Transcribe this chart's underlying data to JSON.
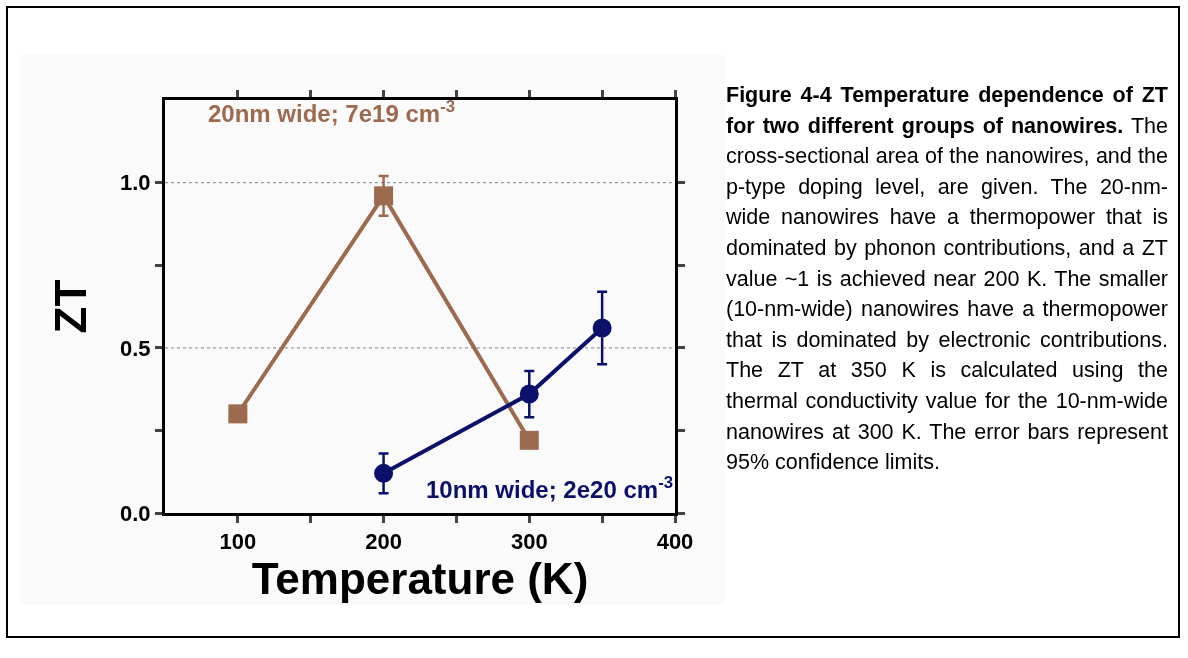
{
  "chart_data": {
    "type": "line",
    "xlabel": "Temperature (K)",
    "ylabel": "ZT",
    "title": "Figure 4-4 Temperature dependence of ZT for two different groups of nanowires.",
    "annotations": [
      "The cross-sectional area of the nanowires, and the p-type doping level, are given. The 20-nm-wide nanowires have a thermopower that is dominated by phonon contributions, and a ZT value ~1 is achieved near 200 K. The smaller (10-nm-wide) nanowires have a thermopower that is dominated by electronic contributions. The ZT at 350 K is calculated using the thermal conductivity value for the 10-nm-wide nanowires at 300 K. The error bars represent 95% confidence limits."
    ],
    "series": [
      {
        "name": "20nm wide; 7e19 cm$^{-3}$",
        "color": "#9c6a4f",
        "marker": "square",
        "x": [
          100,
          200,
          300
        ],
        "values": [
          0.3,
          0.96,
          0.22
        ],
        "errors": [
          null,
          0.06,
          null
        ]
      },
      {
        "name": "10nm wide; 2e20 cm$^{-3}$",
        "color": "#0b116b",
        "marker": "circle",
        "x": [
          200,
          300,
          350
        ],
        "values": [
          0.12,
          0.36,
          0.56
        ],
        "errors": [
          0.06,
          0.07,
          0.11
        ]
      }
    ],
    "xlim": [
      50,
      400
    ],
    "xticks": [
      100,
      {
        "value": 150,
        "label": null
      },
      200,
      {
        "value": 250,
        "label": null
      },
      300,
      {
        "value": 350,
        "label": null
      },
      400
    ],
    "ylim": [
      0,
      1.25
    ],
    "yticks": [
      {
        "value": 0,
        "label": "0.0"
      },
      {
        "value": 0.25,
        "label": null
      },
      0.5,
      {
        "value": 0.75,
        "label": null
      },
      {
        "value": 1,
        "label": "1.0"
      }
    ],
    "grid": "y",
    "line_style": "solid"
  }
}
